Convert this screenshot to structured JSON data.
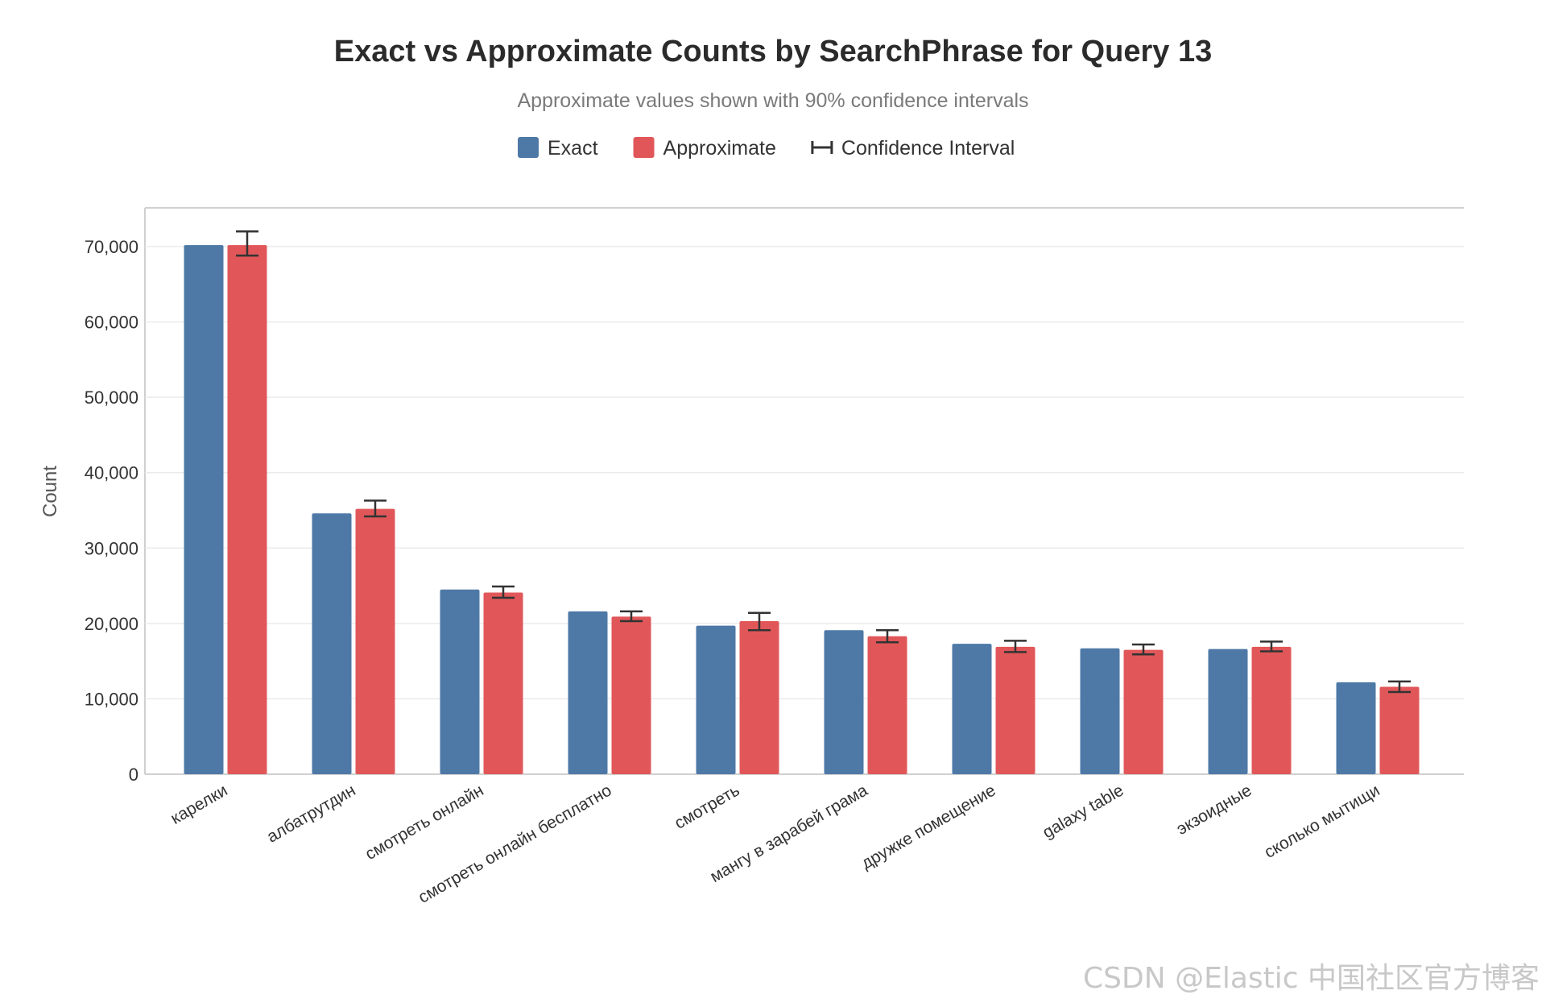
{
  "chart_data": {
    "type": "bar",
    "title": "Exact vs Approximate Counts by SearchPhrase for Query 13",
    "subtitle": "Approximate values shown with 90% confidence intervals",
    "xlabel": "",
    "ylabel": "Count",
    "ylim": [
      0,
      75000
    ],
    "yticks": [
      0,
      10000,
      20000,
      30000,
      40000,
      50000,
      60000,
      70000
    ],
    "ytick_labels": [
      "0",
      "10,000",
      "20,000",
      "30,000",
      "40,000",
      "50,000",
      "60,000",
      "70,000"
    ],
    "grid": true,
    "legend": {
      "placement": "top-center",
      "items": [
        {
          "label": "Exact",
          "kind": "swatch",
          "color": "#4e79a7"
        },
        {
          "label": "Approximate",
          "kind": "swatch",
          "color": "#e15759"
        },
        {
          "label": "Confidence Interval",
          "kind": "errorbar",
          "color": "#333333"
        }
      ]
    },
    "categories": [
      "карелки",
      "албатрутдин",
      "смотреть онлайн",
      "смотреть онлайн бесплатно",
      "смотреть",
      "мангу в зарабей грама",
      "дружке помещение",
      "galaxy table",
      "экзоидные",
      "сколько мытищи"
    ],
    "series": [
      {
        "name": "Exact",
        "color": "#4e79a7",
        "values": [
          70200,
          34600,
          24500,
          21600,
          19700,
          19100,
          17300,
          16700,
          16600,
          12200
        ]
      },
      {
        "name": "Approximate",
        "color": "#e15759",
        "values": [
          70200,
          35200,
          24100,
          20900,
          20300,
          18300,
          16900,
          16500,
          16900,
          11600
        ],
        "ci_low": [
          68800,
          34200,
          23400,
          20300,
          19100,
          17500,
          16200,
          15900,
          16300,
          10900
        ],
        "ci_high": [
          72000,
          36300,
          24900,
          21600,
          21400,
          19100,
          17700,
          17200,
          17600,
          12300
        ]
      }
    ]
  },
  "watermark": "CSDN @Elastic 中国社区官方博客"
}
